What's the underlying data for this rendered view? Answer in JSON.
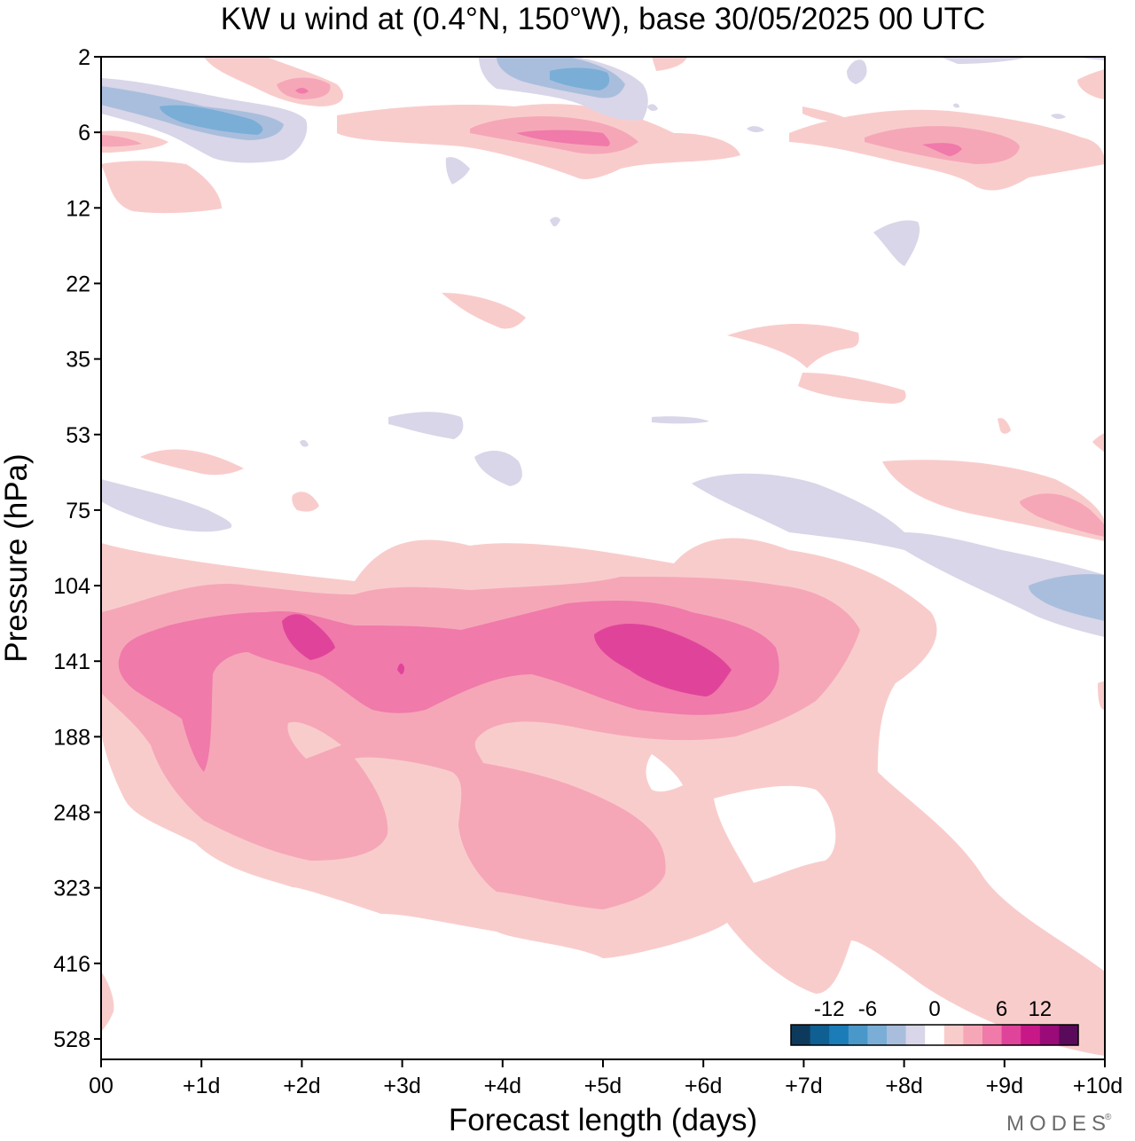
{
  "chart_data": {
    "type": "contour",
    "title": "KW u wind at (0.4°N, 150°W),  base 30/05/2025  00 UTC",
    "xlabel": "Forecast length (days)",
    "ylabel": "Pressure (hPa)",
    "x_ticks": [
      "00",
      "+1d",
      "+2d",
      "+3d",
      "+4d",
      "+5d",
      "+6d",
      "+7d",
      "+8d",
      "+9d",
      "+10d"
    ],
    "y_ticks": [
      "2",
      "6",
      "12",
      "22",
      "35",
      "53",
      "75",
      "104",
      "141",
      "188",
      "248",
      "323",
      "416",
      "528"
    ],
    "xlim": [
      0,
      10
    ],
    "colorbar": {
      "tick_labels": [
        "-12",
        "-6",
        "0",
        "6",
        "12"
      ],
      "levels": [
        -16,
        -14,
        -12,
        -10,
        -8,
        -6,
        -4,
        -2,
        2,
        4,
        6,
        8,
        10,
        12,
        14,
        16
      ],
      "colors": [
        "#0d3a5c",
        "#0f5f93",
        "#1a7db8",
        "#4a98c9",
        "#7aaed6",
        "#a9bedd",
        "#d8d6e8",
        "#ffffff",
        "#f9cccc",
        "#f5a7b8",
        "#f07aaa",
        "#e0449a",
        "#c81888",
        "#9a0a78",
        "#5a0a5a"
      ]
    },
    "regions": [
      {
        "level": 2,
        "x": [
          0.0,
          0.3,
          1.0,
          2.0,
          3.0,
          4.0,
          5.0,
          6.0,
          7.0,
          8.0,
          9.0,
          10.0
        ],
        "p_range": [
          100,
          520
        ],
        "description_level_only": true
      }
    ]
  },
  "brand": "MODES",
  "brand_mark": "®"
}
